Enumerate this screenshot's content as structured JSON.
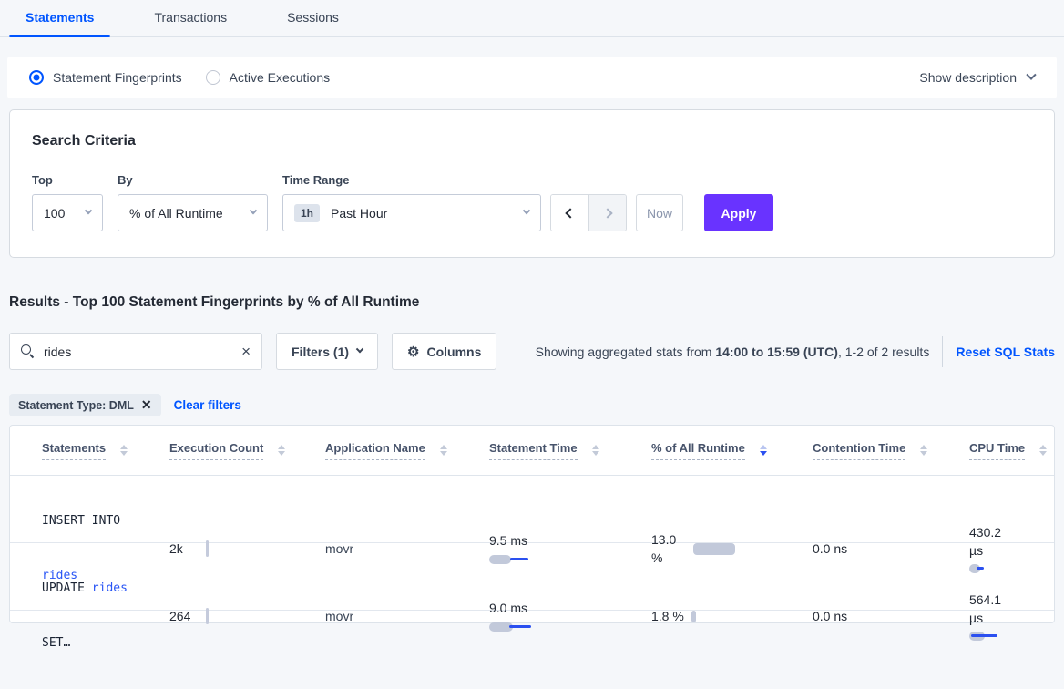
{
  "colors": {
    "accent_blue": "#0055ff",
    "apply_purple": "#6933ff",
    "bar_gray": "#c2c9da",
    "bar_blue": "#2b50f0"
  },
  "tabs": [
    {
      "label": "Statements",
      "active": true
    },
    {
      "label": "Transactions",
      "active": false
    },
    {
      "label": "Sessions",
      "active": false
    }
  ],
  "view_toggle": {
    "options": [
      {
        "label": "Statement Fingerprints",
        "selected": true
      },
      {
        "label": "Active Executions",
        "selected": false
      }
    ],
    "show_description_label": "Show description"
  },
  "search_criteria": {
    "title": "Search Criteria",
    "top": {
      "label": "Top",
      "value": "100"
    },
    "by": {
      "label": "By",
      "value": "% of All Runtime"
    },
    "time_range": {
      "label": "Time Range",
      "badge": "1h",
      "value": "Past Hour"
    },
    "now_label": "Now",
    "apply_label": "Apply"
  },
  "results": {
    "heading": "Results - Top 100 Statement Fingerprints by % of All Runtime",
    "search_value": "rides",
    "filters_label": "Filters (1)",
    "columns_label": "Columns",
    "showing_prefix": "Showing aggregated stats from ",
    "showing_bold": "14:00 to 15:59 (UTC)",
    "showing_suffix": ", 1-2 of 2 results",
    "reset_label": "Reset SQL Stats",
    "filter_pill": "Statement Type: DML",
    "clear_filters_label": "Clear filters"
  },
  "table": {
    "columns": [
      "Statements",
      "Execution Count",
      "Application Name",
      "Statement Time",
      "% of All Runtime",
      "Contention Time",
      "CPU Time"
    ],
    "sorted_column": "% of All Runtime",
    "sort_direction": "desc",
    "rows": [
      {
        "statement": {
          "line1": "INSERT INTO",
          "link": "rides"
        },
        "execution_count": "2k",
        "application_name": "movr",
        "statement_time": "9.5 ms",
        "pct_of_all_runtime": "13.0 %",
        "contention_time": "0.0 ns",
        "cpu_time": "430.2 µs",
        "bars": {
          "time_bar_w": 24,
          "time_line_l": 23,
          "time_line_w": 20,
          "runtime_bar_w": 46,
          "cpu_bar_w": 12,
          "cpu_line_l": 8,
          "cpu_line_w": 8
        }
      },
      {
        "statement": {
          "prefix": "UPDATE ",
          "link": "rides",
          "line2": "SET…"
        },
        "execution_count": "264",
        "application_name": "movr",
        "statement_time": "9.0 ms",
        "pct_of_all_runtime": "1.8 %",
        "contention_time": "0.0 ns",
        "cpu_time": "564.1 µs",
        "bars": {
          "time_bar_w": 26,
          "time_line_l": 22,
          "time_line_w": 24,
          "runtime_bar_w": 5,
          "cpu_bar_w": 17,
          "cpu_line_l": 2,
          "cpu_line_w": 29
        }
      }
    ]
  }
}
